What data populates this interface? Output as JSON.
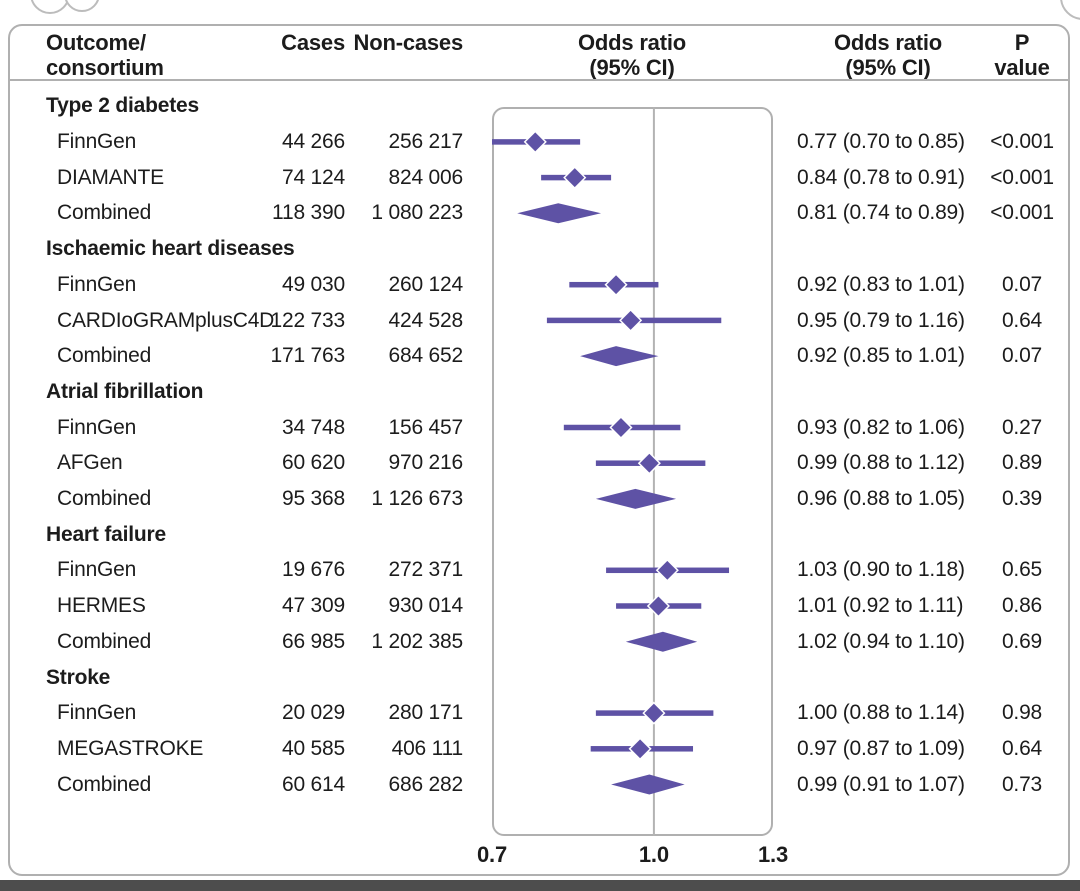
{
  "header": {
    "outcome": "Outcome/\nconsortium",
    "cases": "Cases",
    "noncases": "Non-cases",
    "or_plot": "Odds ratio\n(95% CI)",
    "or_text": "Odds ratio\n(95% CI)",
    "pvalue": "P\nvalue"
  },
  "colors": {
    "accent": "#5e52a5",
    "border": "#b0b0b0",
    "refline": "#b3b3b3",
    "text": "#1c1c1c",
    "bottom_bar": "#4d4d4d"
  },
  "chart_data": {
    "type": "forest",
    "xscale": "log",
    "xlim": [
      0.7,
      1.3
    ],
    "xtick_labels": [
      "0.7",
      "1.0",
      "1.3"
    ],
    "reference_line": 1.0,
    "groups": [
      {
        "label": "Type 2 diabetes",
        "rows": [
          {
            "label": "FinnGen",
            "cases": "44 266",
            "noncases": "256 217",
            "or": 0.77,
            "ci_lo": 0.7,
            "ci_hi": 0.85,
            "or_ci_text": "0.77 (0.70 to 0.85)",
            "p": "<0.001",
            "summary": false
          },
          {
            "label": "DIAMANTE",
            "cases": "74 124",
            "noncases": "824 006",
            "or": 0.84,
            "ci_lo": 0.78,
            "ci_hi": 0.91,
            "or_ci_text": "0.84 (0.78 to 0.91)",
            "p": "<0.001",
            "summary": false
          },
          {
            "label": "Combined",
            "cases": "118 390",
            "noncases": "1 080 223",
            "or": 0.81,
            "ci_lo": 0.74,
            "ci_hi": 0.89,
            "or_ci_text": "0.81 (0.74 to 0.89)",
            "p": "<0.001",
            "summary": true
          }
        ]
      },
      {
        "label": "Ischaemic heart diseases",
        "rows": [
          {
            "label": "FinnGen",
            "cases": "49 030",
            "noncases": "260 124",
            "or": 0.92,
            "ci_lo": 0.83,
            "ci_hi": 1.01,
            "or_ci_text": "0.92 (0.83 to 1.01)",
            "p": "0.07",
            "summary": false
          },
          {
            "label": "CARDIoGRAMplusC4D",
            "cases": "122 733",
            "noncases": "424 528",
            "or": 0.95,
            "ci_lo": 0.79,
            "ci_hi": 1.16,
            "or_ci_text": "0.95 (0.79 to 1.16)",
            "p": "0.64",
            "summary": false
          },
          {
            "label": "Combined",
            "cases": "171 763",
            "noncases": "684 652",
            "or": 0.92,
            "ci_lo": 0.85,
            "ci_hi": 1.01,
            "or_ci_text": "0.92 (0.85 to 1.01)",
            "p": "0.07",
            "summary": true
          }
        ]
      },
      {
        "label": "Atrial fibrillation",
        "rows": [
          {
            "label": "FinnGen",
            "cases": "34 748",
            "noncases": "156 457",
            "or": 0.93,
            "ci_lo": 0.82,
            "ci_hi": 1.06,
            "or_ci_text": "0.93 (0.82 to 1.06)",
            "p": "0.27",
            "summary": false
          },
          {
            "label": "AFGen",
            "cases": "60 620",
            "noncases": "970 216",
            "or": 0.99,
            "ci_lo": 0.88,
            "ci_hi": 1.12,
            "or_ci_text": "0.99 (0.88 to 1.12)",
            "p": "0.89",
            "summary": false
          },
          {
            "label": "Combined",
            "cases": "95 368",
            "noncases": "1 126 673",
            "or": 0.96,
            "ci_lo": 0.88,
            "ci_hi": 1.05,
            "or_ci_text": "0.96 (0.88 to 1.05)",
            "p": "0.39",
            "summary": true
          }
        ]
      },
      {
        "label": "Heart failure",
        "rows": [
          {
            "label": "FinnGen",
            "cases": "19 676",
            "noncases": "272 371",
            "or": 1.03,
            "ci_lo": 0.9,
            "ci_hi": 1.18,
            "or_ci_text": "1.03 (0.90 to 1.18)",
            "p": "0.65",
            "summary": false
          },
          {
            "label": "HERMES",
            "cases": "47 309",
            "noncases": "930 014",
            "or": 1.01,
            "ci_lo": 0.92,
            "ci_hi": 1.11,
            "or_ci_text": "1.01 (0.92 to 1.11)",
            "p": "0.86",
            "summary": false
          },
          {
            "label": "Combined",
            "cases": "66 985",
            "noncases": "1 202 385",
            "or": 1.02,
            "ci_lo": 0.94,
            "ci_hi": 1.1,
            "or_ci_text": "1.02 (0.94 to 1.10)",
            "p": "0.69",
            "summary": true
          }
        ]
      },
      {
        "label": "Stroke",
        "rows": [
          {
            "label": "FinnGen",
            "cases": "20 029",
            "noncases": "280 171",
            "or": 1.0,
            "ci_lo": 0.88,
            "ci_hi": 1.14,
            "or_ci_text": "1.00 (0.88 to 1.14)",
            "p": "0.98",
            "summary": false
          },
          {
            "label": "MEGASTROKE",
            "cases": "40 585",
            "noncases": "406 111",
            "or": 0.97,
            "ci_lo": 0.87,
            "ci_hi": 1.09,
            "or_ci_text": "0.97 (0.87 to 1.09)",
            "p": "0.64",
            "summary": false
          },
          {
            "label": "Combined",
            "cases": "60 614",
            "noncases": "686 282",
            "or": 0.99,
            "ci_lo": 0.91,
            "ci_hi": 1.07,
            "or_ci_text": "0.99 (0.91 to 1.07)",
            "p": "0.73",
            "summary": true
          }
        ]
      }
    ]
  }
}
